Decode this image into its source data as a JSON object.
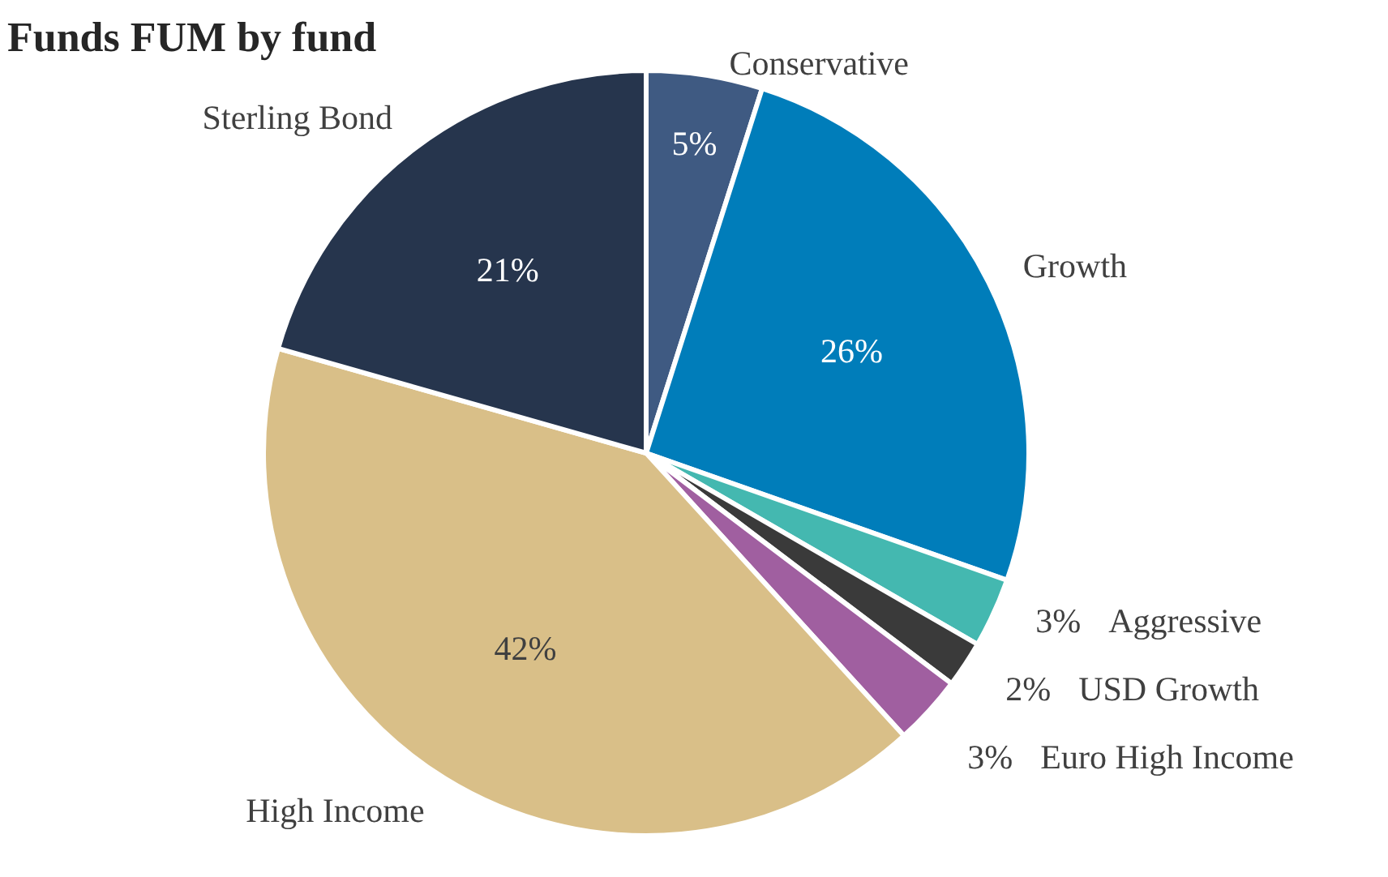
{
  "chart_data": {
    "type": "pie",
    "title": "Funds FUM by fund",
    "categories": [
      "Conservative",
      "Growth",
      "Aggressive",
      "USD Growth",
      "Euro High Income",
      "High Income",
      "Sterling Bond"
    ],
    "values": [
      5,
      26,
      3,
      2,
      3,
      42,
      21
    ],
    "colors": [
      "#3f5a82",
      "#007dba",
      "#44b8b0",
      "#3a3a3a",
      "#a05fa0",
      "#d9bf88",
      "#26354d"
    ],
    "value_labels": [
      "5%",
      "26%",
      "3%",
      "2%",
      "3%",
      "42%",
      "21%"
    ]
  }
}
